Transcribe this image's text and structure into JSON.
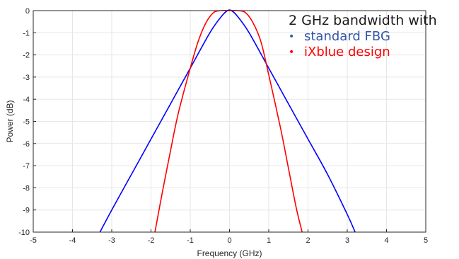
{
  "chart_data": {
    "type": "line",
    "title": "",
    "xlabel": "Frequency (GHz)",
    "ylabel": "Power (dB)",
    "xlim": [
      -5,
      5
    ],
    "ylim": [
      -10,
      0
    ],
    "xticks": [
      "-5",
      "-4",
      "-3",
      "-2",
      "-1",
      "0",
      "1",
      "2",
      "3",
      "4",
      "5"
    ],
    "yticks": [
      "0",
      "-1",
      "-2",
      "-3",
      "-4",
      "-5",
      "-6",
      "-7",
      "-8",
      "-9",
      "-10"
    ],
    "grid": true,
    "legend_placement": "top-right",
    "legend_title": "2 GHz bandwidth with",
    "series": [
      {
        "name": "standard FBG",
        "color": "#0000ff",
        "x": [
          -3.3,
          -3.0,
          -2.5,
          -2.0,
          -1.5,
          -1.0,
          -0.5,
          -0.2,
          -0.05,
          0.05,
          0.2,
          0.5,
          1.0,
          1.5,
          2.0,
          2.5,
          3.0,
          3.2
        ],
        "y": [
          -10.0,
          -9.0,
          -7.4,
          -5.8,
          -4.2,
          -2.6,
          -1.0,
          -0.25,
          0.0,
          0.0,
          -0.25,
          -1.0,
          -2.6,
          -4.2,
          -5.8,
          -7.4,
          -9.2,
          -10.0
        ]
      },
      {
        "name": "iXblue design",
        "color": "#ff0000",
        "x": [
          -1.9,
          -1.7,
          -1.5,
          -1.3,
          -1.0,
          -0.8,
          -0.6,
          -0.4,
          -0.2,
          0.0,
          0.2,
          0.4,
          0.6,
          0.8,
          1.0,
          1.3,
          1.5,
          1.7,
          1.85
        ],
        "y": [
          -10.0,
          -8.1,
          -6.3,
          -4.6,
          -2.6,
          -1.4,
          -0.55,
          -0.08,
          0.0,
          0.0,
          0.0,
          -0.08,
          -0.55,
          -1.4,
          -2.9,
          -5.3,
          -7.1,
          -8.9,
          -10.0
        ]
      }
    ]
  }
}
